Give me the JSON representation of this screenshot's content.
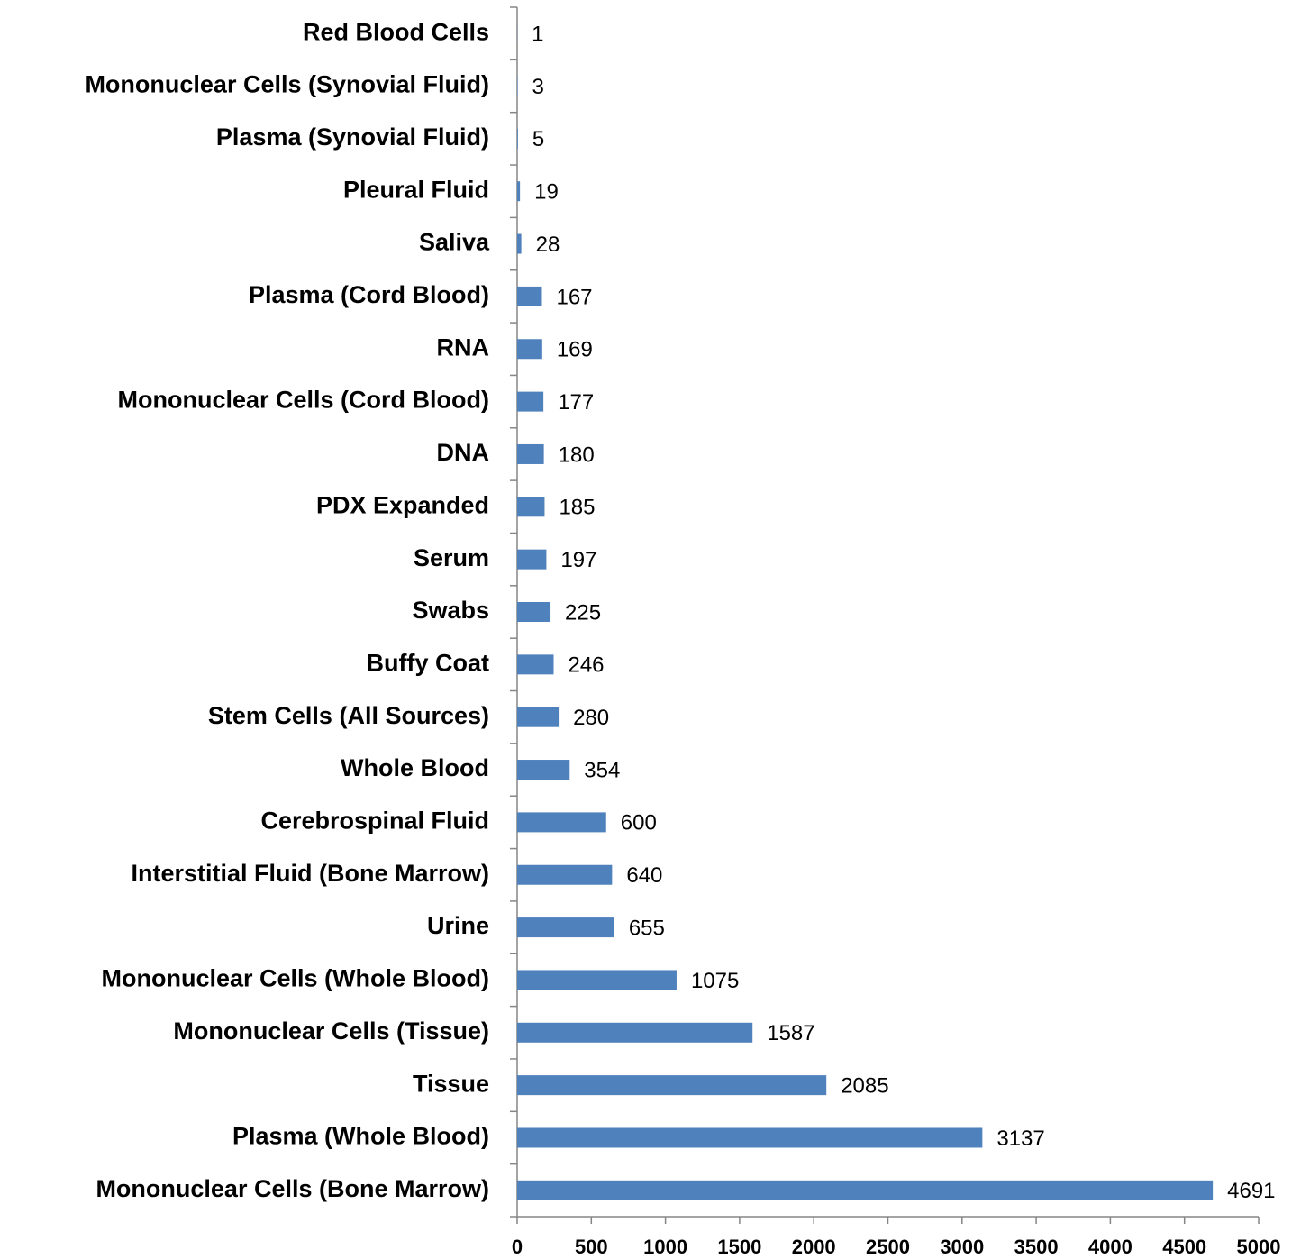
{
  "chart_data": {
    "type": "bar",
    "orientation": "horizontal",
    "color": "#4f81bd",
    "categories": [
      "Red Blood Cells",
      "Mononuclear Cells (Synovial Fluid)",
      "Plasma (Synovial Fluid)",
      "Pleural Fluid",
      "Saliva",
      "Plasma (Cord Blood)",
      "RNA",
      "Mononuclear Cells (Cord Blood)",
      "DNA",
      "PDX Expanded",
      "Serum",
      "Swabs",
      "Buffy Coat",
      "Stem Cells (All Sources)",
      "Whole Blood",
      "Cerebrospinal Fluid",
      "Interstitial Fluid (Bone Marrow)",
      "Urine",
      "Mononuclear Cells (Whole Blood)",
      "Mononuclear Cells (Tissue)",
      "Tissue",
      "Plasma (Whole Blood)",
      "Mononuclear Cells (Bone Marrow)"
    ],
    "values": [
      1,
      3,
      5,
      19,
      28,
      167,
      169,
      177,
      180,
      185,
      197,
      225,
      246,
      280,
      354,
      600,
      640,
      655,
      1075,
      1587,
      2085,
      3137,
      4691
    ],
    "xlim": [
      0,
      5000
    ],
    "xticks": [
      0,
      500,
      1000,
      1500,
      2000,
      2500,
      3000,
      3500,
      4000,
      4500,
      5000
    ]
  }
}
